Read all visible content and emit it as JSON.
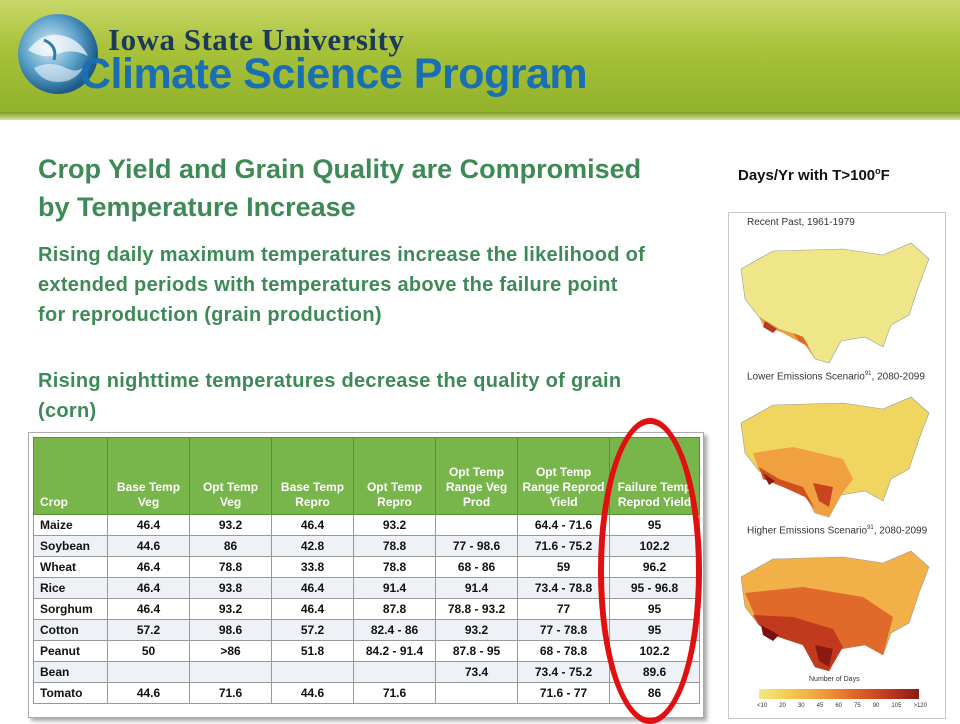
{
  "header": {
    "university": "Iowa State University",
    "program": "Climate Science Program"
  },
  "content": {
    "title": "Crop Yield and Grain Quality are Compromised by Temperature Increase",
    "paragraph1": "Rising daily maximum temperatures increase the likelihood of extended periods with temperatures above the failure point for reproduction (grain production)",
    "paragraph2": "Rising nighttime temperatures decrease the quality of grain (corn)"
  },
  "maps": {
    "title_prefix": "Days/Yr with T>100",
    "title_degree": "o",
    "title_suffix": "F",
    "panels": [
      {
        "label": "Recent Past, 1961-1979",
        "sup": ""
      },
      {
        "label": "Lower Emissions Scenario",
        "sup": "91",
        "label_suffix": ", 2080-2099"
      },
      {
        "label": "Higher Emissions Scenario",
        "sup": "91",
        "label_suffix": ", 2080-2099"
      }
    ],
    "legend_title": "Number of Days",
    "legend_ticks": [
      "<10",
      "20",
      "30",
      "45",
      "60",
      "75",
      "90",
      "105",
      ">120"
    ],
    "colors": [
      "#f2ea80",
      "#f5c84a",
      "#f39a3a",
      "#e26428",
      "#c23a1e",
      "#8a1a14"
    ]
  },
  "table": {
    "headers": [
      "Crop",
      "Base Temp Veg",
      "Opt Temp Veg",
      "Base Temp Repro",
      "Opt Temp Repro",
      "Opt Temp Range Veg Prod",
      "Opt Temp Range Reprod Yield",
      "Failure Temp Reprod Yield"
    ],
    "rows": [
      [
        "Maize",
        "46.4",
        "93.2",
        "46.4",
        "93.2",
        "",
        "64.4 - 71.6",
        "95"
      ],
      [
        "Soybean",
        "44.6",
        "86",
        "42.8",
        "78.8",
        "77 - 98.6",
        "71.6 - 75.2",
        "102.2"
      ],
      [
        "Wheat",
        "46.4",
        "78.8",
        "33.8",
        "78.8",
        "68 - 86",
        "59",
        "96.2"
      ],
      [
        "Rice",
        "46.4",
        "93.8",
        "46.4",
        "91.4",
        "91.4",
        "73.4 - 78.8",
        "95 - 96.8"
      ],
      [
        "Sorghum",
        "46.4",
        "93.2",
        "46.4",
        "87.8",
        "78.8 - 93.2",
        "77",
        "95"
      ],
      [
        "Cotton",
        "57.2",
        "98.6",
        "57.2",
        "82.4 - 86",
        "93.2",
        "77 - 78.8",
        "95"
      ],
      [
        "Peanut",
        "50",
        ">86",
        "51.8",
        "84.2 - 91.4",
        "87.8 - 95",
        "68 - 78.8",
        "102.2"
      ],
      [
        "Bean",
        "",
        "",
        "",
        "",
        "73.4",
        "73.4 - 75.2",
        "89.6"
      ],
      [
        "Tomato",
        "44.6",
        "71.6",
        "44.6",
        "71.6",
        "",
        "71.6 - 77",
        "86"
      ]
    ]
  }
}
